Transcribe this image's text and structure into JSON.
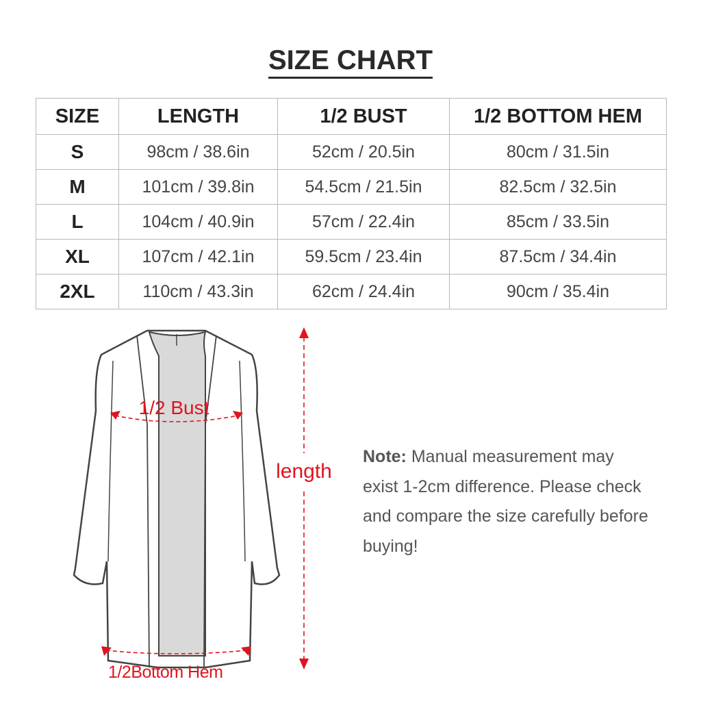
{
  "title": "SIZE CHART",
  "table": {
    "headers": [
      "SIZE",
      "LENGTH",
      "1/2 BUST",
      "1/2 BOTTOM HEM"
    ],
    "rows": [
      [
        "S",
        "98cm / 38.6in",
        "52cm / 20.5in",
        "80cm / 31.5in"
      ],
      [
        "M",
        "101cm / 39.8in",
        "54.5cm / 21.5in",
        "82.5cm / 32.5in"
      ],
      [
        "L",
        "104cm / 40.9in",
        "57cm / 22.4in",
        "85cm / 33.5in"
      ],
      [
        "XL",
        "107cm / 42.1in",
        "59.5cm / 23.4in",
        "87.5cm / 34.4in"
      ],
      [
        "2XL",
        "110cm / 43.3in",
        "62cm / 24.4in",
        "90cm / 35.4in"
      ]
    ]
  },
  "diagram": {
    "bust_label": "1/2 Bust",
    "length_label": "length",
    "hem_label": "1/2Bottom Hem",
    "accent_color": "#e0141e"
  },
  "note": {
    "label": "Note:",
    "text": "Manual measurement may exist 1-2cm difference. Please check and compare the size carefully before buying!"
  }
}
